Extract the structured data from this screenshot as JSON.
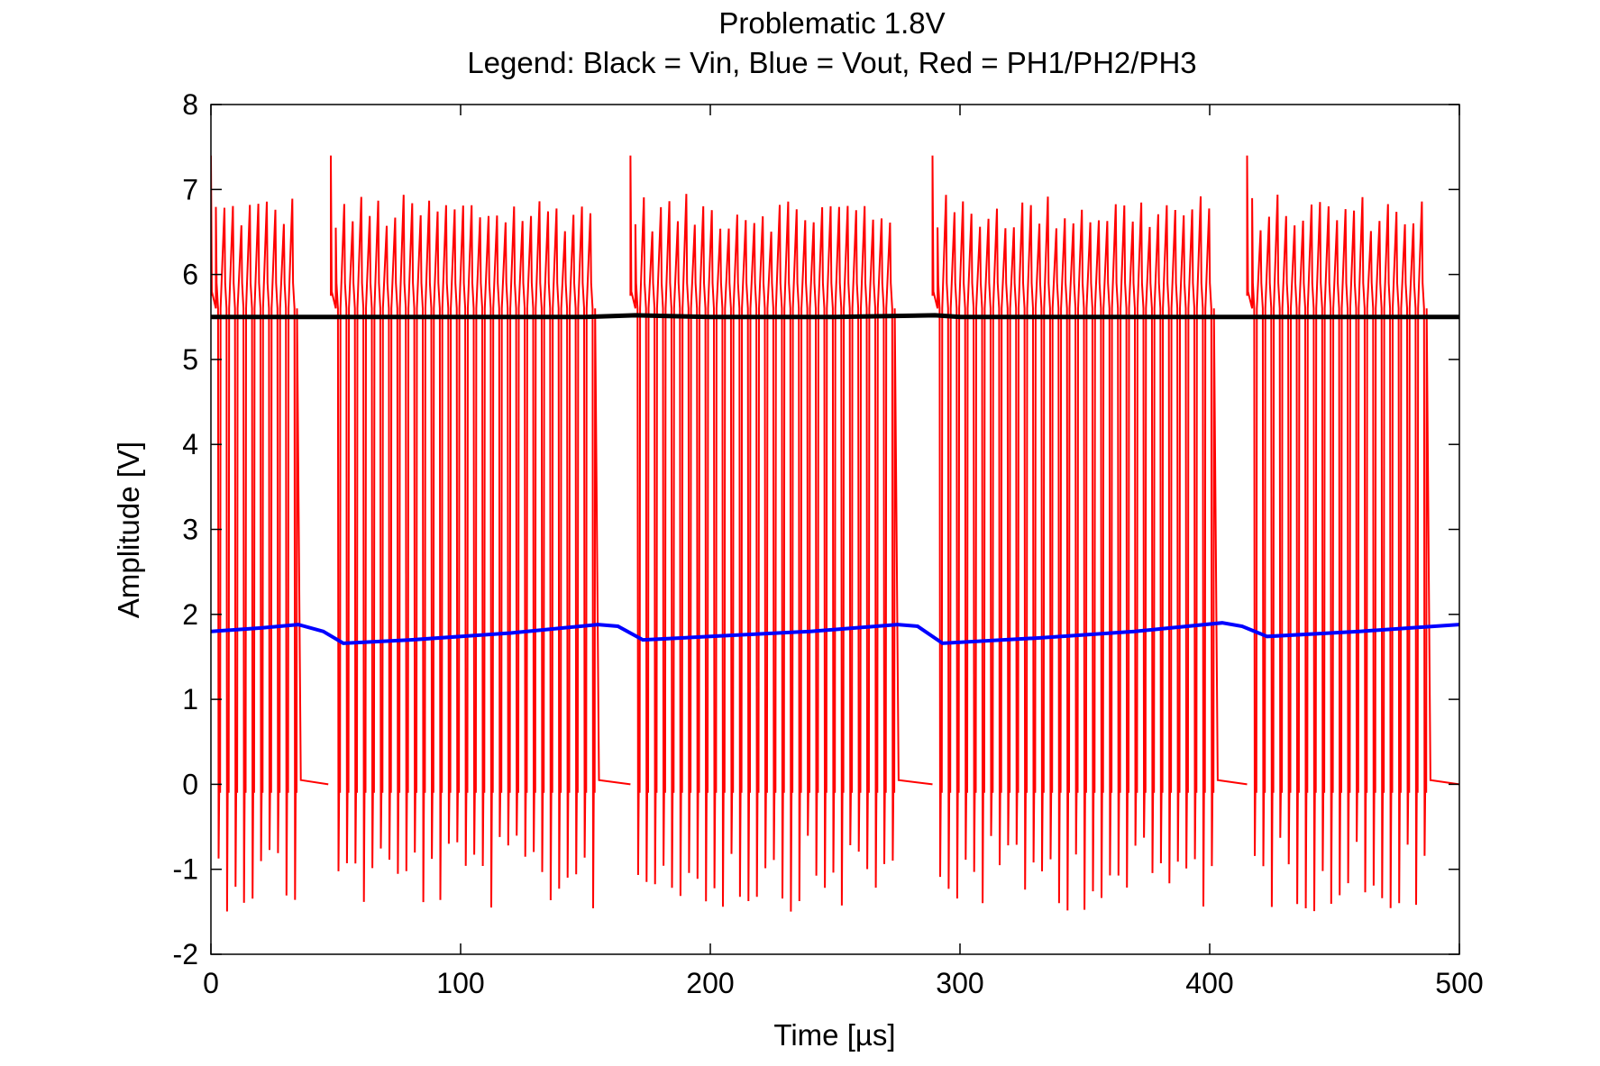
{
  "chart_data": {
    "type": "line",
    "title": "Problematic 1.8V",
    "subtitle": "Legend: Black = Vin, Blue = Vout, Red = PH1/PH2/PH3",
    "xlabel": "Time [µs]",
    "ylabel": "Amplitude [V]",
    "xlim": [
      0,
      500
    ],
    "ylim": [
      -2,
      8
    ],
    "xticks": [
      0,
      100,
      200,
      300,
      400,
      500
    ],
    "yticks": [
      -2,
      -1,
      0,
      1,
      2,
      3,
      4,
      5,
      6,
      7,
      8
    ],
    "xtick_labels": [
      "0",
      "100",
      "200",
      "300",
      "400",
      "500"
    ],
    "ytick_labels": [
      "-2",
      "-1",
      "0",
      "1",
      "2",
      "3",
      "4",
      "5",
      "6",
      "7",
      "8"
    ],
    "grid": false,
    "series": [
      {
        "name": "Vin",
        "color": "#000000",
        "x": [
          0,
          50,
          100,
          150,
          170,
          200,
          250,
          290,
          300,
          350,
          400,
          415,
          450,
          500
        ],
        "y": [
          5.5,
          5.5,
          5.5,
          5.5,
          5.52,
          5.5,
          5.5,
          5.52,
          5.5,
          5.5,
          5.5,
          5.5,
          5.5,
          5.5
        ]
      },
      {
        "name": "Vout",
        "color": "#0000ff",
        "x": [
          0,
          20,
          35,
          45,
          53,
          80,
          120,
          155,
          163,
          173,
          200,
          240,
          275,
          283,
          293,
          330,
          370,
          405,
          413,
          423,
          460,
          500
        ],
        "y": [
          1.8,
          1.84,
          1.88,
          1.8,
          1.66,
          1.7,
          1.78,
          1.88,
          1.86,
          1.7,
          1.74,
          1.8,
          1.88,
          1.86,
          1.66,
          1.72,
          1.8,
          1.9,
          1.86,
          1.74,
          1.8,
          1.88
        ]
      },
      {
        "name": "PH1/PH2/PH3",
        "color": "#ff0000",
        "bursts": [
          {
            "start": 0,
            "end": 47
          },
          {
            "start": 48,
            "end": 168
          },
          {
            "start": 168,
            "end": 289
          },
          {
            "start": 289,
            "end": 415
          },
          {
            "start": 415,
            "end": 500
          }
        ],
        "pulse_period_us": 3.4,
        "high_level": 5.6,
        "low_level": -0.1,
        "overshoot_max": 6.9,
        "undershoot_min": -1.4,
        "burst_start_spike": 7.4
      }
    ]
  }
}
